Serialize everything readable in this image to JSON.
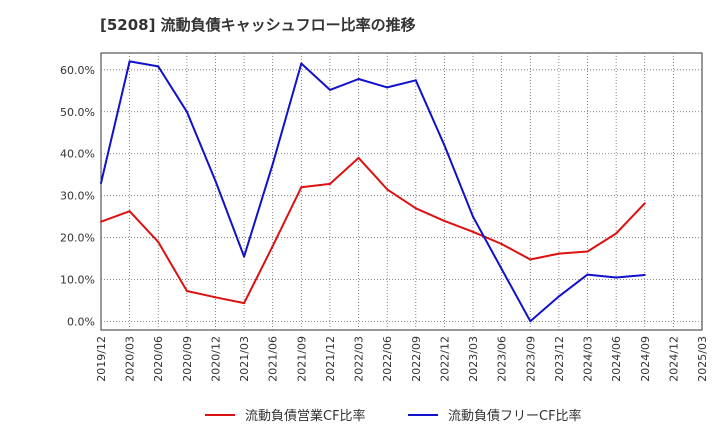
{
  "chart_data": {
    "type": "line",
    "title": "[5208]  流動負債キャッシュフロー比率の推移",
    "xlabel": "",
    "ylabel": "",
    "x": [
      "2019/12",
      "2020/03",
      "2020/06",
      "2020/09",
      "2020/12",
      "2021/03",
      "2021/06",
      "2021/09",
      "2021/12",
      "2022/03",
      "2022/06",
      "2022/09",
      "2022/12",
      "2023/03",
      "2023/06",
      "2023/09",
      "2023/12",
      "2024/03",
      "2024/06",
      "2024/09",
      "2024/12",
      "2025/03"
    ],
    "y_ticks": [
      "0.0%",
      "10.0%",
      "20.0%",
      "30.0%",
      "40.0%",
      "50.0%",
      "60.0%"
    ],
    "ylim": [
      -2,
      64
    ],
    "grid": true,
    "legend_position": "bottom",
    "series": [
      {
        "name": "流動負債営業CF比率",
        "color": "#dd1111",
        "values": [
          23.8,
          26.3,
          19.0,
          7.3,
          5.8,
          4.4,
          18.0,
          32.0,
          32.8,
          39.0,
          31.5,
          27.0,
          24.0,
          21.4,
          18.5,
          14.8,
          16.2,
          16.7,
          21.0,
          28.2,
          null,
          null
        ]
      },
      {
        "name": "流動負債フリーCF比率",
        "color": "#1111cc",
        "values": [
          33.0,
          62.0,
          60.8,
          50.0,
          33.5,
          15.5,
          37.5,
          61.5,
          55.2,
          57.8,
          55.8,
          57.5,
          42.0,
          25.0,
          12.5,
          0.1,
          6.0,
          11.2,
          10.5,
          11.1,
          null,
          null
        ]
      }
    ]
  }
}
